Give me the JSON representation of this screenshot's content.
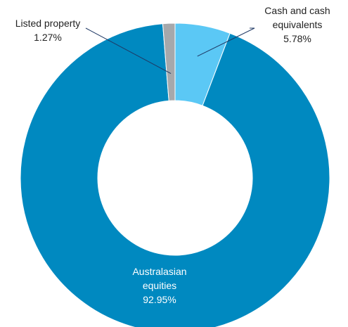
{
  "chart_data": {
    "type": "pie",
    "donut": true,
    "slices": [
      {
        "name": "Cash and cash equivalents",
        "label_lines": [
          "Cash and cash",
          "equivalents"
        ],
        "value_label": "5.78%",
        "value": 5.78,
        "color": "#5bc8f5"
      },
      {
        "name": "Australasian equities",
        "label_lines": [
          "Australasian",
          "equities"
        ],
        "value_label": "92.95%",
        "value": 92.95,
        "color": "#0089c0"
      },
      {
        "name": "Listed property",
        "label_lines": [
          "Listed property"
        ],
        "value_label": "1.27%",
        "value": 1.27,
        "color": "#a6a8ab"
      }
    ],
    "label_color_outside": "#222222",
    "label_color_inside": "#ffffff",
    "leader_line_color": "#1f3864"
  }
}
